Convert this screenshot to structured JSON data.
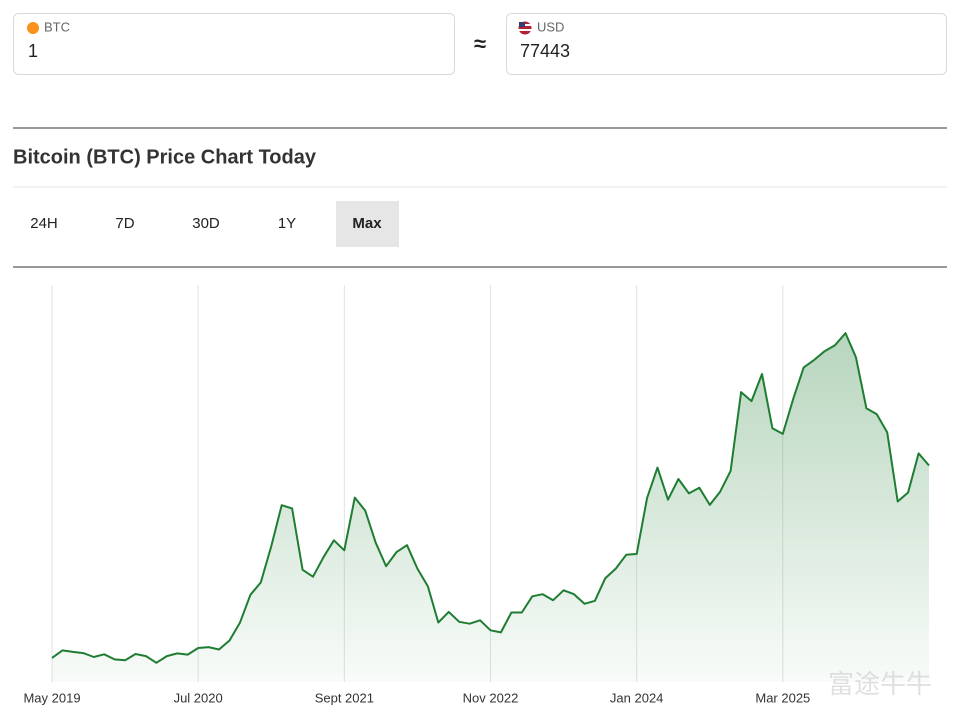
{
  "converter": {
    "from": {
      "currency": "BTC",
      "amount": "1"
    },
    "approx": "≈",
    "to": {
      "currency": "USD",
      "amount": "77443"
    }
  },
  "tabs": {
    "items": [
      "24H",
      "7D",
      "30D",
      "1Y",
      "Max"
    ],
    "active": "Max"
  },
  "watermark": "富途牛牛",
  "chart_data": {
    "type": "area",
    "title": "Bitcoin (BTC) Price Chart Today",
    "color": "#1e7d32",
    "grid": true,
    "ylim": [
      0,
      132000
    ],
    "categories": [
      "May 2019",
      null,
      null,
      null,
      null,
      null,
      null,
      null,
      null,
      null,
      null,
      null,
      null,
      null,
      "Jul 2020",
      null,
      null,
      null,
      null,
      null,
      null,
      null,
      null,
      null,
      null,
      null,
      null,
      null,
      "Sept 2021",
      null,
      null,
      null,
      null,
      null,
      null,
      null,
      null,
      null,
      null,
      null,
      null,
      null,
      "Nov 2022",
      null,
      null,
      null,
      null,
      null,
      null,
      null,
      null,
      null,
      null,
      null,
      null,
      null,
      "Jan 2024",
      null,
      null,
      null,
      null,
      null,
      null,
      null,
      null,
      null,
      null,
      null,
      null,
      null,
      "Mar 2025",
      null,
      null,
      null,
      null,
      null,
      null,
      null,
      null,
      null,
      null,
      null,
      null,
      null,
      null
    ],
    "values": [
      8000,
      10500,
      10000,
      9600,
      8300,
      9200,
      7500,
      7200,
      9300,
      8600,
      6400,
      8600,
      9500,
      9100,
      11300,
      11600,
      10800,
      13800,
      19700,
      29000,
      33100,
      45200,
      58800,
      57700,
      37300,
      35000,
      41500,
      47100,
      43800,
      61300,
      57000,
      46300,
      38500,
      43200,
      45500,
      37700,
      31800,
      19800,
      23300,
      20000,
      19400,
      20500,
      17200,
      16500,
      23100,
      23100,
      28500,
      29200,
      27200,
      30500,
      29200,
      26000,
      27000,
      34500,
      37700,
      42300,
      42600,
      61200,
      71300,
      60600,
      67500,
      62700,
      64600,
      58900,
      63300,
      70200,
      96400,
      93400,
      102400,
      84400,
      82500,
      94200,
      104600,
      107100,
      110000,
      112000,
      116000,
      108000,
      91000,
      89000,
      83000,
      60000,
      63000,
      76000,
      72000
    ]
  }
}
